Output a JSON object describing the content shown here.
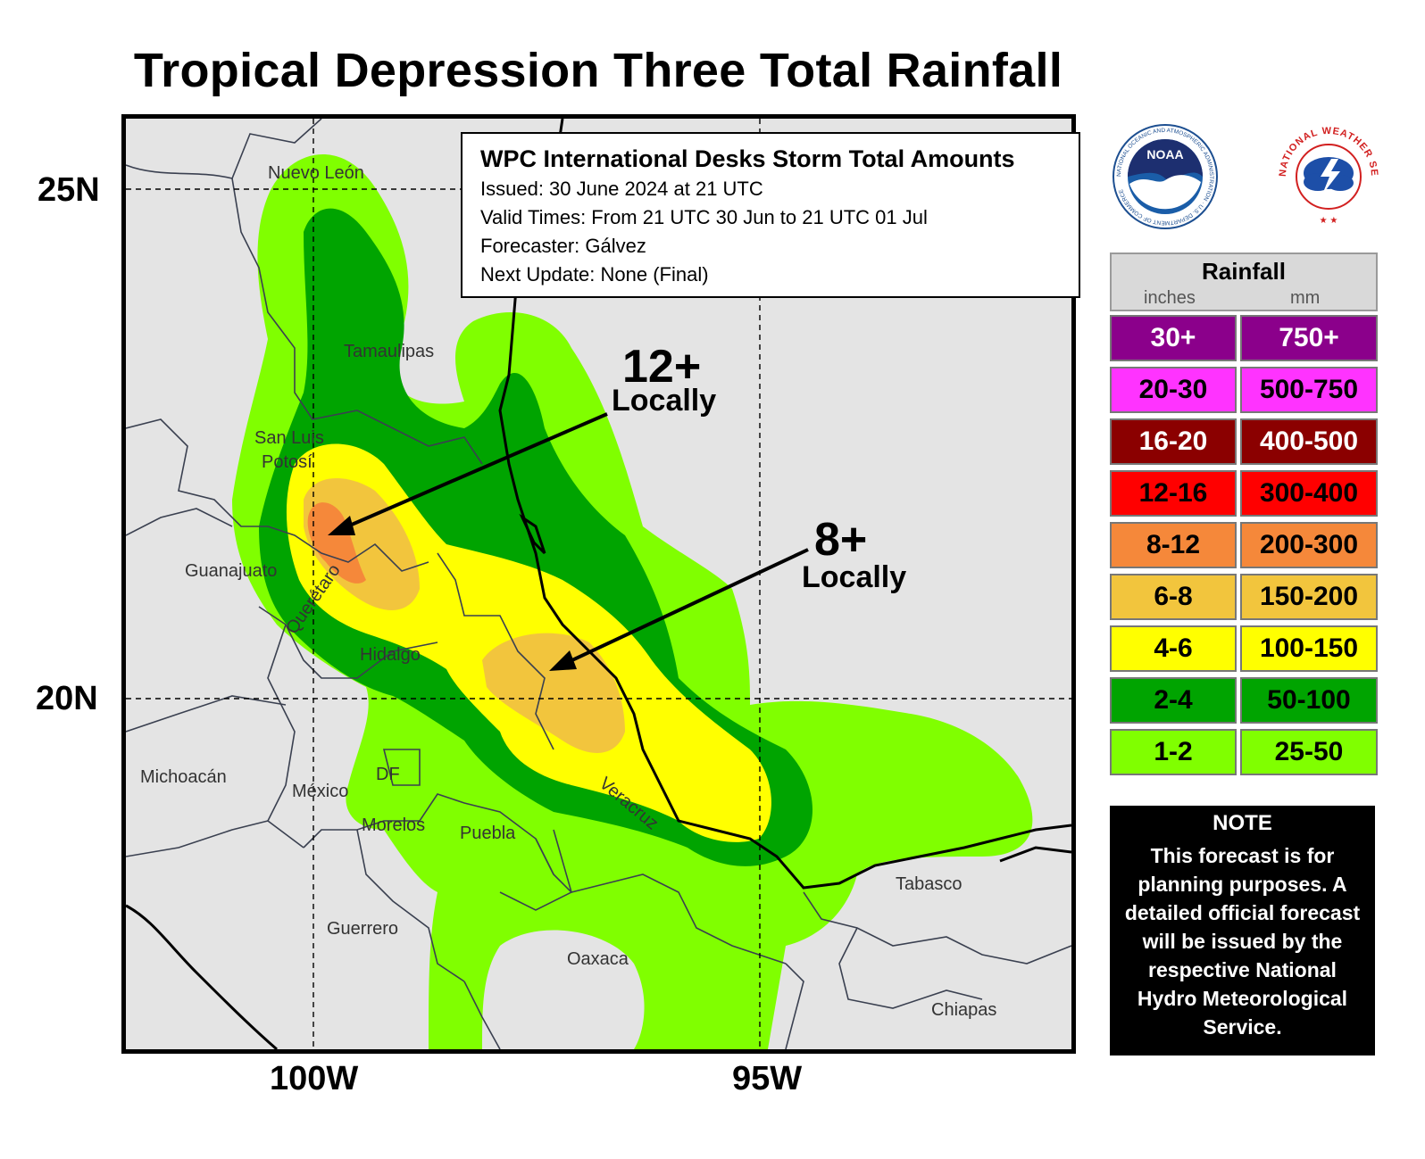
{
  "title": "Tropical Depression Three Total Rainfall",
  "axes": {
    "lat_labels": [
      "25N",
      "20N"
    ],
    "lon_labels": [
      "100W",
      "95W"
    ]
  },
  "info_box": {
    "heading": "WPC International Desks Storm Total Amounts",
    "issued": "Issued:  30 June 2024 at 21 UTC",
    "valid": "Valid Times:  From 21 UTC 30 Jun to  21 UTC 01 Jul",
    "forecaster": "Forecaster: Gálvez",
    "next_update": "Next Update: None (Final)"
  },
  "places": {
    "nuevo_leon": "Nuevo León",
    "tamaulipas": "Tamaulipas",
    "san_luis_1": "San Luis",
    "san_luis_2": "Potosí",
    "guanajuato": "Guanajuato",
    "queretaro": "Querétaro",
    "hidalgo": "Hidalgo",
    "michoacan": "Michoacán",
    "mexico": "México",
    "df": "DF",
    "morelos": "Morelos",
    "puebla": "Puebla",
    "veracruz": "Veracruz",
    "guerrero": "Guerrero",
    "oaxaca": "Oaxaca",
    "tabasco": "Tabasco",
    "chiapas": "Chiapas"
  },
  "callouts": {
    "max_value": "12+",
    "max_word": "Locally",
    "second_value": "8+",
    "second_word": "Locally"
  },
  "logos": {
    "noaa_text": "NOAA",
    "noaa_ring": "NATIONAL OCEANIC AND ATMOSPHERIC ADMINISTRATION · U.S. DEPARTMENT OF COMMERCE",
    "nws_ring": "NATIONAL WEATHER SERVICE"
  },
  "legend": {
    "title": "Rainfall",
    "inches_label": "inches",
    "mm_label": "mm",
    "rows": [
      {
        "inches": "30+",
        "mm": "750+",
        "color": "#8b008b",
        "text_color": "#ffffff"
      },
      {
        "inches": "20-30",
        "mm": "500-750",
        "color": "#ff33ff",
        "text_color": "#000000"
      },
      {
        "inches": "16-20",
        "mm": "400-500",
        "color": "#8b0000",
        "text_color": "#ffffff"
      },
      {
        "inches": "12-16",
        "mm": "300-400",
        "color": "#ff0000",
        "text_color": "#000000"
      },
      {
        "inches": "8-12",
        "mm": "200-300",
        "color": "#f5883a",
        "text_color": "#000000"
      },
      {
        "inches": "6-8",
        "mm": "150-200",
        "color": "#f2c53d",
        "text_color": "#000000"
      },
      {
        "inches": "4-6",
        "mm": "100-150",
        "color": "#ffff00",
        "text_color": "#000000"
      },
      {
        "inches": "2-4",
        "mm": "50-100",
        "color": "#00a400",
        "text_color": "#000000"
      },
      {
        "inches": "1-2",
        "mm": "25-50",
        "color": "#80ff00",
        "text_color": "#000000"
      }
    ]
  },
  "note": {
    "title": "NOTE",
    "body": "This forecast is for planning purposes. A detailed official forecast will be issued by the respective National Hydro Meteorological Service."
  }
}
